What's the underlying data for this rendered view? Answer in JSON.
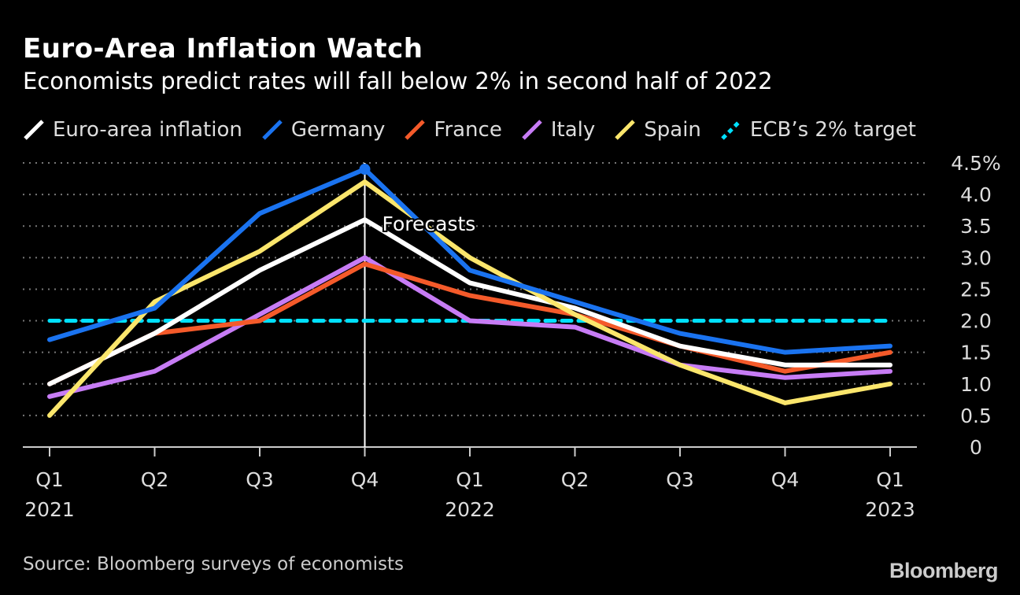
{
  "title": "Euro-Area Inflation Watch",
  "subtitle": "Economists predict rates will fall below 2% in second half of 2022",
  "source": "Source: Bloomberg surveys of economists",
  "logo": "Bloomberg",
  "chart_data": {
    "type": "line",
    "x": [
      "Q1 2021",
      "Q2 2021",
      "Q3 2021",
      "Q4 2021",
      "Q1 2022",
      "Q2 2022",
      "Q3 2022",
      "Q4 2022",
      "Q1 2023"
    ],
    "x_tick_labels": [
      [
        "Q1",
        "2021"
      ],
      [
        "Q2",
        ""
      ],
      [
        "Q3",
        ""
      ],
      [
        "Q4",
        ""
      ],
      [
        "Q1",
        "2022"
      ],
      [
        "Q2",
        ""
      ],
      [
        "Q3",
        ""
      ],
      [
        "Q4",
        ""
      ],
      [
        "Q1",
        "2023"
      ]
    ],
    "y_ticks": [
      "0",
      "0.5",
      "1.0",
      "1.5",
      "2.0",
      "2.5",
      "3.0",
      "3.5",
      "4.0",
      "4.5%"
    ],
    "y_tick_values": [
      0,
      0.5,
      1,
      1.5,
      2,
      2.5,
      3,
      3.5,
      4,
      4.5
    ],
    "ylim": [
      0,
      4.5
    ],
    "ylabel": "",
    "grid": "horizontal dotted",
    "legend_placement": "top",
    "annotation": {
      "text": "Forecasts",
      "at": "Q4 2021"
    },
    "series": [
      {
        "name": "Euro-area inflation",
        "color": "#ffffff",
        "values": [
          1.0,
          1.8,
          2.8,
          3.6,
          2.6,
          2.2,
          1.6,
          1.3,
          1.3
        ]
      },
      {
        "name": "Germany",
        "color": "#1a73f0",
        "values": [
          1.7,
          2.2,
          3.7,
          4.4,
          2.8,
          2.3,
          1.8,
          1.5,
          1.6
        ]
      },
      {
        "name": "France",
        "color": "#f45a2a",
        "values": [
          1.0,
          1.8,
          2.0,
          2.9,
          2.4,
          2.1,
          1.6,
          1.2,
          1.5
        ]
      },
      {
        "name": "Italy",
        "color": "#c77cf5",
        "values": [
          0.8,
          1.2,
          2.1,
          3.0,
          2.0,
          1.9,
          1.3,
          1.1,
          1.2
        ]
      },
      {
        "name": "Spain",
        "color": "#fbe66c",
        "values": [
          0.5,
          2.3,
          3.1,
          4.2,
          3.0,
          2.1,
          1.3,
          0.7,
          1.0
        ]
      },
      {
        "name": "ECB’s 2% target",
        "color": "#00e1ff",
        "values": [
          2,
          2,
          2,
          2,
          2,
          2,
          2,
          2,
          2
        ],
        "dashed": true
      }
    ]
  }
}
